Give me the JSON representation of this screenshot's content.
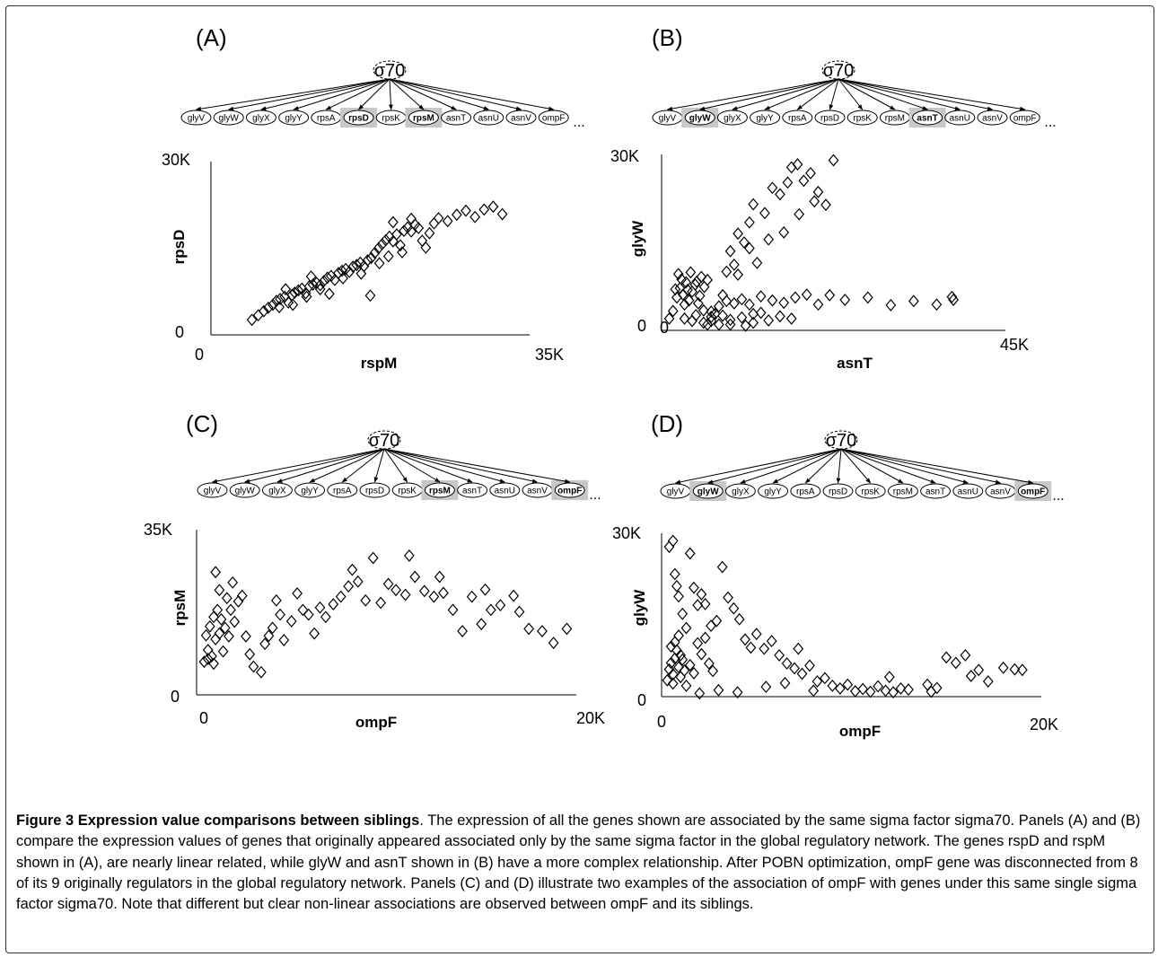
{
  "sigma_label": "σ70",
  "genes": [
    "glyV",
    "glyW",
    "glyX",
    "glyY",
    "rpsA",
    "rpsD",
    "rpsK",
    "rpsM",
    "asnT",
    "asnU",
    "asnV",
    "ompF"
  ],
  "ellipsis": "...",
  "caption": {
    "title": "Figure 3 Expression value comparisons between siblings",
    "body": ". The expression of all the genes shown are associated by the same sigma factor sigma70. Panels (A) and (B) compare the expression values of genes that originally appeared associated only by the same sigma factor in the global regulatory network. The genes rspD and rspM shown in (A), are nearly linear related, while glyW and asnT shown in (B) have a more complex relationship. After POBN optimization, ompF gene was disconnected from 8 of its 9 originally regulators in the global regulatory network. Panels (C) and (D) illustrate two examples of the association of ompF with genes under this same single sigma factor sigma70. Note that different but clear non-linear associations are observed between ompF and its siblings."
  },
  "colors": {
    "highlight": "#c8c8c8",
    "marker": "#000000"
  },
  "chart_data": [
    {
      "panel": "(A)",
      "type": "scatter",
      "marker": "diamond-open",
      "highlight": [
        "rpsD",
        "rpsM"
      ],
      "xlabel": "rspM",
      "ylabel": "rpsD",
      "xticks": [
        "0",
        "35K"
      ],
      "yticks": [
        "0",
        "30K"
      ],
      "xlim": [
        0,
        35000
      ],
      "ylim": [
        0,
        30000
      ],
      "points": [
        [
          4500,
          2600
        ],
        [
          5200,
          3400
        ],
        [
          5800,
          4100
        ],
        [
          6300,
          4700
        ],
        [
          6800,
          5200
        ],
        [
          7200,
          5900
        ],
        [
          7600,
          6200
        ],
        [
          8100,
          6600
        ],
        [
          8500,
          5600
        ],
        [
          8900,
          6900
        ],
        [
          9200,
          7300
        ],
        [
          9600,
          7700
        ],
        [
          10000,
          8000
        ],
        [
          10400,
          7200
        ],
        [
          10800,
          8400
        ],
        [
          11200,
          8700
        ],
        [
          11600,
          9000
        ],
        [
          12000,
          8600
        ],
        [
          12400,
          9300
        ],
        [
          12800,
          9900
        ],
        [
          13200,
          10200
        ],
        [
          13600,
          9500
        ],
        [
          14000,
          10700
        ],
        [
          14400,
          11100
        ],
        [
          14800,
          11400
        ],
        [
          15200,
          10900
        ],
        [
          15600,
          11800
        ],
        [
          16000,
          12100
        ],
        [
          16400,
          12500
        ],
        [
          16800,
          11900
        ],
        [
          17200,
          12900
        ],
        [
          17600,
          13300
        ],
        [
          18000,
          14200
        ],
        [
          18400,
          15000
        ],
        [
          18800,
          15700
        ],
        [
          19200,
          16400
        ],
        [
          19600,
          17000
        ],
        [
          20000,
          16200
        ],
        [
          20400,
          17400
        ],
        [
          20800,
          15500
        ],
        [
          21200,
          18000
        ],
        [
          21600,
          18600
        ],
        [
          22000,
          17900
        ],
        [
          22400,
          19100
        ],
        [
          22800,
          18500
        ],
        [
          23200,
          16300
        ],
        [
          23600,
          15100
        ],
        [
          24000,
          17600
        ],
        [
          24500,
          19300
        ],
        [
          25000,
          20200
        ],
        [
          26000,
          19700
        ],
        [
          27000,
          20800
        ],
        [
          28000,
          21500
        ],
        [
          29000,
          20400
        ],
        [
          30000,
          21700
        ],
        [
          31000,
          22200
        ],
        [
          32000,
          20900
        ],
        [
          9000,
          5200
        ],
        [
          10500,
          6600
        ],
        [
          12000,
          7900
        ],
        [
          14500,
          9800
        ],
        [
          16500,
          10600
        ],
        [
          18500,
          12400
        ],
        [
          19500,
          13600
        ],
        [
          21000,
          14300
        ],
        [
          7500,
          4800
        ],
        [
          8200,
          7900
        ],
        [
          11000,
          10100
        ],
        [
          13000,
          7100
        ],
        [
          17500,
          6800
        ],
        [
          20000,
          19500
        ],
        [
          22000,
          20100
        ]
      ]
    },
    {
      "panel": "(B)",
      "type": "scatter",
      "marker": "diamond-open",
      "highlight": [
        "glyW",
        "asnT"
      ],
      "xlabel": "asnT",
      "ylabel": "glyW",
      "xticks": [
        "0",
        "45K"
      ],
      "yticks": [
        "0",
        "30K"
      ],
      "xlim": [
        0,
        45000
      ],
      "ylim": [
        0,
        30000
      ],
      "points": [
        [
          1000,
          2000
        ],
        [
          1500,
          3300
        ],
        [
          2000,
          5600
        ],
        [
          2400,
          7200
        ],
        [
          2800,
          6100
        ],
        [
          3200,
          8200
        ],
        [
          3600,
          5100
        ],
        [
          4000,
          6600
        ],
        [
          4400,
          7800
        ],
        [
          4800,
          4600
        ],
        [
          5200,
          9100
        ],
        [
          5600,
          7400
        ],
        [
          2200,
          9600
        ],
        [
          3000,
          4400
        ],
        [
          3800,
          9900
        ],
        [
          4600,
          8300
        ],
        [
          1800,
          7000
        ],
        [
          2600,
          8700
        ],
        [
          3400,
          6900
        ],
        [
          5000,
          5900
        ],
        [
          6000,
          8600
        ],
        [
          6500,
          3200
        ],
        [
          7500,
          4100
        ],
        [
          8500,
          5000
        ],
        [
          9500,
          4600
        ],
        [
          10500,
          5300
        ],
        [
          11500,
          4400
        ],
        [
          13000,
          5800
        ],
        [
          14500,
          5100
        ],
        [
          16000,
          4700
        ],
        [
          17500,
          5600
        ],
        [
          19000,
          6100
        ],
        [
          20500,
          4400
        ],
        [
          22000,
          6000
        ],
        [
          24000,
          5200
        ],
        [
          27000,
          5600
        ],
        [
          30000,
          4300
        ],
        [
          33000,
          5000
        ],
        [
          36000,
          4400
        ],
        [
          38000,
          5700
        ],
        [
          38200,
          5200
        ],
        [
          3000,
          2000
        ],
        [
          4000,
          1600
        ],
        [
          5500,
          1300
        ],
        [
          6500,
          1600
        ],
        [
          7500,
          1000
        ],
        [
          9000,
          1800
        ],
        [
          10500,
          2200
        ],
        [
          12000,
          1300
        ],
        [
          14000,
          1700
        ],
        [
          15500,
          2400
        ],
        [
          17000,
          2000
        ],
        [
          6000,
          1000
        ],
        [
          6500,
          2300
        ],
        [
          8000,
          2500
        ],
        [
          9000,
          1000
        ],
        [
          11000,
          800
        ],
        [
          8500,
          10000
        ],
        [
          9000,
          13500
        ],
        [
          9500,
          11200
        ],
        [
          10000,
          16500
        ],
        [
          10800,
          15000
        ],
        [
          11500,
          18400
        ],
        [
          12000,
          21500
        ],
        [
          13500,
          20000
        ],
        [
          14500,
          24300
        ],
        [
          15500,
          23200
        ],
        [
          16500,
          25200
        ],
        [
          17000,
          27800
        ],
        [
          17800,
          28300
        ],
        [
          18600,
          25500
        ],
        [
          19500,
          26800
        ],
        [
          20500,
          23600
        ],
        [
          21500,
          21400
        ],
        [
          18000,
          19800
        ],
        [
          14000,
          15500
        ],
        [
          11500,
          14000
        ],
        [
          10000,
          9500
        ],
        [
          16000,
          16700
        ],
        [
          12500,
          11500
        ],
        [
          20000,
          22000
        ],
        [
          22500,
          29000
        ],
        [
          4500,
          2600
        ],
        [
          5500,
          3400
        ],
        [
          7000,
          2800
        ],
        [
          8000,
          6000
        ],
        [
          13000,
          3000
        ],
        [
          12000,
          2800
        ]
      ]
    },
    {
      "panel": "(C)",
      "type": "scatter",
      "marker": "diamond-open",
      "highlight": [
        "rpsM",
        "ompF"
      ],
      "xlabel": "ompF",
      "ylabel": "rpsM",
      "xticks": [
        "0",
        "20K"
      ],
      "yticks": [
        "0",
        "35K"
      ],
      "xlim": [
        0,
        20000
      ],
      "ylim": [
        0,
        35000
      ],
      "points": [
        [
          400,
          7000
        ],
        [
          600,
          9500
        ],
        [
          800,
          8200
        ],
        [
          1000,
          11800
        ],
        [
          1200,
          13000
        ],
        [
          500,
          12600
        ],
        [
          700,
          14500
        ],
        [
          900,
          16500
        ],
        [
          1100,
          18000
        ],
        [
          1300,
          16000
        ],
        [
          1500,
          14200
        ],
        [
          600,
          7600
        ],
        [
          900,
          6600
        ],
        [
          1400,
          9200
        ],
        [
          1700,
          12400
        ],
        [
          2000,
          15500
        ],
        [
          2200,
          19800
        ],
        [
          2400,
          21000
        ],
        [
          1600,
          20500
        ],
        [
          1900,
          23800
        ],
        [
          1000,
          26000
        ],
        [
          1200,
          22200
        ],
        [
          1800,
          18000
        ],
        [
          2600,
          12400
        ],
        [
          2800,
          8600
        ],
        [
          3000,
          6000
        ],
        [
          3400,
          4800
        ],
        [
          3600,
          10800
        ],
        [
          3800,
          12500
        ],
        [
          4000,
          14200
        ],
        [
          4200,
          20000
        ],
        [
          4400,
          17000
        ],
        [
          4600,
          11600
        ],
        [
          5000,
          15600
        ],
        [
          5300,
          21500
        ],
        [
          5600,
          18000
        ],
        [
          5900,
          17000
        ],
        [
          6200,
          13000
        ],
        [
          6500,
          18500
        ],
        [
          6800,
          16500
        ],
        [
          7200,
          19200
        ],
        [
          7600,
          20800
        ],
        [
          8000,
          23000
        ],
        [
          8200,
          26500
        ],
        [
          8500,
          24000
        ],
        [
          8900,
          20000
        ],
        [
          9300,
          29000
        ],
        [
          9700,
          19500
        ],
        [
          10100,
          23500
        ],
        [
          10500,
          22200
        ],
        [
          11000,
          21200
        ],
        [
          11500,
          25000
        ],
        [
          12000,
          22000
        ],
        [
          12500,
          20800
        ],
        [
          13000,
          21600
        ],
        [
          13500,
          18000
        ],
        [
          14500,
          20800
        ],
        [
          15200,
          22300
        ],
        [
          15500,
          18000
        ],
        [
          16000,
          19000
        ],
        [
          16700,
          21000
        ],
        [
          17000,
          17600
        ],
        [
          17500,
          14000
        ],
        [
          18200,
          13500
        ],
        [
          18800,
          11000
        ],
        [
          19500,
          14000
        ],
        [
          15000,
          15000
        ],
        [
          14000,
          13500
        ],
        [
          12800,
          25000
        ],
        [
          11200,
          29500
        ]
      ]
    },
    {
      "panel": "(D)",
      "type": "scatter",
      "marker": "diamond-open",
      "highlight": [
        "glyW",
        "ompF"
      ],
      "xlabel": "ompF",
      "ylabel": "glyW",
      "xticks": [
        "0",
        "20K"
      ],
      "yticks": [
        "0",
        "30K"
      ],
      "xlim": [
        0,
        20000
      ],
      "ylim": [
        0,
        30000
      ],
      "points": [
        [
          300,
          3000
        ],
        [
          400,
          5000
        ],
        [
          500,
          6200
        ],
        [
          600,
          4100
        ],
        [
          700,
          7000
        ],
        [
          800,
          8500
        ],
        [
          900,
          5400
        ],
        [
          1000,
          7600
        ],
        [
          1100,
          6800
        ],
        [
          1200,
          4800
        ],
        [
          500,
          9200
        ],
        [
          700,
          10000
        ],
        [
          900,
          11200
        ],
        [
          600,
          2400
        ],
        [
          1000,
          3600
        ],
        [
          1300,
          2000
        ],
        [
          1500,
          5800
        ],
        [
          1700,
          4300
        ],
        [
          1900,
          9800
        ],
        [
          2100,
          7800
        ],
        [
          2300,
          10800
        ],
        [
          2500,
          6100
        ],
        [
          2700,
          4700
        ],
        [
          400,
          27500
        ],
        [
          600,
          28600
        ],
        [
          700,
          22500
        ],
        [
          800,
          20300
        ],
        [
          900,
          18400
        ],
        [
          1100,
          15200
        ],
        [
          1300,
          12600
        ],
        [
          1500,
          26300
        ],
        [
          1700,
          20000
        ],
        [
          1900,
          16800
        ],
        [
          2100,
          18800
        ],
        [
          2300,
          17000
        ],
        [
          2600,
          13000
        ],
        [
          2900,
          13900
        ],
        [
          3200,
          23800
        ],
        [
          3500,
          18200
        ],
        [
          3800,
          16200
        ],
        [
          4100,
          14200
        ],
        [
          4400,
          10500
        ],
        [
          4700,
          9000
        ],
        [
          5000,
          11500
        ],
        [
          5400,
          8800
        ],
        [
          5800,
          10200
        ],
        [
          6200,
          7600
        ],
        [
          6600,
          6100
        ],
        [
          7000,
          5200
        ],
        [
          7400,
          4200
        ],
        [
          7800,
          5700
        ],
        [
          8200,
          2800
        ],
        [
          8600,
          3400
        ],
        [
          9000,
          2000
        ],
        [
          9400,
          1500
        ],
        [
          9800,
          2200
        ],
        [
          10200,
          1000
        ],
        [
          10600,
          1400
        ],
        [
          11000,
          900
        ],
        [
          11400,
          1900
        ],
        [
          11800,
          1100
        ],
        [
          12200,
          800
        ],
        [
          12600,
          1500
        ],
        [
          13000,
          1300
        ],
        [
          14000,
          2200
        ],
        [
          14500,
          1600
        ],
        [
          15000,
          7200
        ],
        [
          15500,
          6200
        ],
        [
          16000,
          7600
        ],
        [
          16300,
          3800
        ],
        [
          16700,
          4900
        ],
        [
          17200,
          2800
        ],
        [
          18000,
          5300
        ],
        [
          18600,
          5000
        ],
        [
          19000,
          4900
        ],
        [
          3000,
          1200
        ],
        [
          4000,
          800
        ],
        [
          5500,
          1800
        ],
        [
          6500,
          2500
        ],
        [
          2000,
          600
        ],
        [
          7200,
          8800
        ],
        [
          8000,
          1100
        ],
        [
          12000,
          3600
        ],
        [
          14200,
          900
        ]
      ]
    }
  ]
}
